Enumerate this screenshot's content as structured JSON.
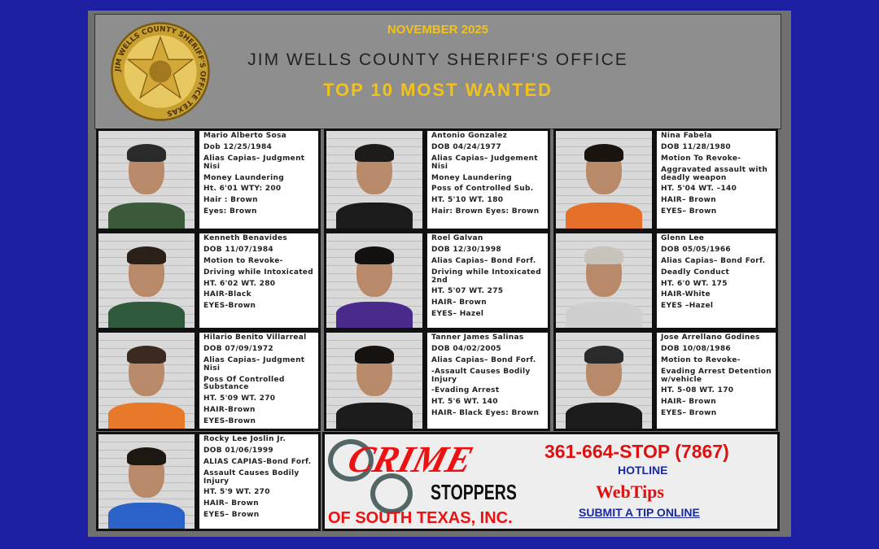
{
  "header": {
    "month": "NOVEMBER 2025",
    "office": "JIM WELLS COUNTY SHERIFF'S OFFICE",
    "title": "TOP 10 MOST WANTED",
    "badge_text": "JIM WELLS COUNTY SHERIFF'S OFFICE TEXAS"
  },
  "colors": {
    "background": "#1d1fa3",
    "header_bg": "#8e8e8e",
    "gold": "#f3c21a",
    "red": "#e01010"
  },
  "people": [
    {
      "shirt": "#3b5a3a",
      "hair": "#2a2a2a",
      "lines": [
        "Mario Alberto Sosa",
        "Dob 12/25/1984",
        "Alias Capias– Judgment Nisi",
        "Money Laundering",
        "Ht. 6'01    WTY: 200",
        "Hair : Brown",
        "Eyes: Brown"
      ]
    },
    {
      "shirt": "#1b1b1b",
      "hair": "#1e1a18",
      "lines": [
        "Antonio Gonzalez",
        "DOB 04/24/1977",
        "Alias Capias– Judgement Nisi",
        "Money Laundering",
        "Poss of Controlled Sub.",
        "HT. 5'10  WT. 180",
        "Hair: Brown    Eyes: Brown"
      ]
    },
    {
      "shirt": "#e5702a",
      "hair": "#1a1410",
      "lines": [
        "Nina Fabela",
        "DOB 11/28/1980",
        "Motion To Revoke-",
        "Aggravated assault with deadly weapon",
        "HT. 5'04  WT. –140",
        "HAIR– Brown",
        "EYES– Brown"
      ]
    },
    {
      "shirt": "#2f5a3c",
      "hair": "#2a2018",
      "lines": [
        "Kenneth Benavides",
        "DOB 11/07/1984",
        "Motion to Revoke-",
        "Driving while Intoxicated",
        "HT. 6'02  WT. 280",
        "HAIR-Black",
        "EYES-Brown"
      ]
    },
    {
      "shirt": "#4a2a8a",
      "hair": "#141010",
      "lines": [
        "Roel Galvan",
        "DOB 12/30/1998",
        "Alias Capias– Bond Forf.",
        "Driving while Intoxicated 2nd",
        "HT. 5'07 WT. 275",
        "HAIR– Brown",
        "EYES– Hazel"
      ]
    },
    {
      "shirt": "#cfcfcf",
      "hair": "#c9c4bb",
      "lines": [
        "Glenn Lee",
        "DOB 05/05/1966",
        "Alias Capias– Bond Forf.",
        "Deadly Conduct",
        "HT. 6'0   WT. 175",
        "HAIR-White",
        "EYES –Hazel"
      ]
    },
    {
      "shirt": "#e8782a",
      "hair": "#3a2a20",
      "lines": [
        "Hilario Benito Villarreal",
        "DOB 07/09/1972",
        "Alias Capias– Judgment Nisi",
        "Poss Of Controlled Substance",
        "HT. 5'09   WT. 270",
        "HAIR-Brown",
        "EYES-Brown"
      ]
    },
    {
      "shirt": "#1b1b1b",
      "hair": "#161210",
      "lines": [
        "Tanner James Salinas",
        "DOB 04/02/2005",
        "Alias Capias– Bond Forf.",
        "-Assault Causes Bodily Injury",
        "-Evading Arrest",
        "HT. 5'6   WT. 140",
        "HAIR– Black  Eyes: Brown"
      ]
    },
    {
      "shirt": "#1b1b1b",
      "hair": "#2a2a2a",
      "lines": [
        "Jose Arrellano Godines",
        "DOB 10/08/1986",
        "Motion to Revoke-",
        "Evading Arrest Detention w/vehicle",
        "HT. 5-08 WT. 170",
        "HAIR– Brown",
        "EYES– Brown"
      ]
    },
    {
      "shirt": "#2a62c8",
      "hair": "#1e1812",
      "lines": [
        "Rocky Lee Joslin Jr.",
        "DOB 01/06/1999",
        "ALIAS CAPIAS-Bond Forf.",
        "Assault Causes Bodily Injury",
        "HT. 5'9  WT. 270",
        "HAIR– Brown",
        "EYES– Brown"
      ]
    }
  ],
  "crime_stoppers": {
    "crime": "CRIME",
    "stoppers": "STOPPERS",
    "of": "OF SOUTH TEXAS, INC.",
    "phone": "361-664-STOP (7867)",
    "hotline": "HOTLINE",
    "webtips": "WebTips",
    "submit": "SUBMIT A TIP ONLINE"
  }
}
